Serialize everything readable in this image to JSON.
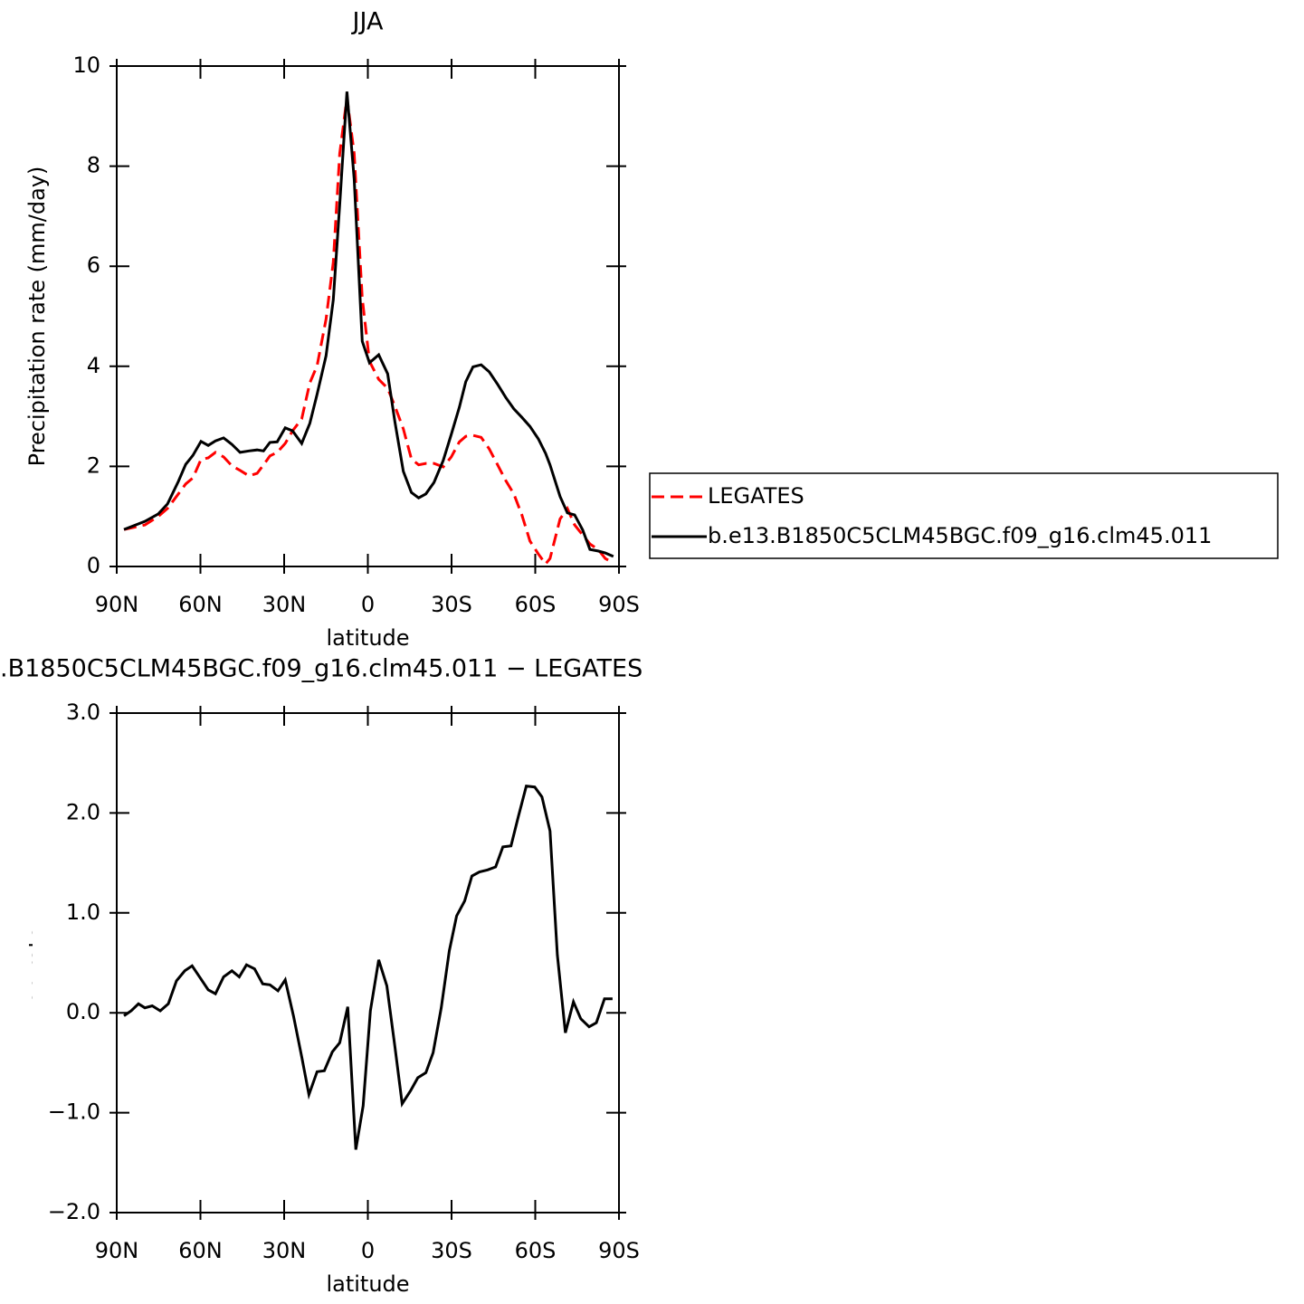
{
  "chart_data": [
    {
      "type": "line",
      "title": "JJA",
      "xlabel": "latitude",
      "ylabel": "Precipitation rate (mm/day)",
      "xlim": [
        90,
        -90
      ],
      "xticks": [
        {
          "value": 90,
          "label": "90N"
        },
        {
          "value": 60,
          "label": "60N"
        },
        {
          "value": 30,
          "label": "30N"
        },
        0,
        {
          "value": -30,
          "label": "30S"
        },
        {
          "value": -60,
          "label": "60S"
        },
        {
          "value": -90,
          "label": "90S"
        }
      ],
      "ylim": [
        0,
        10
      ],
      "yticks": [
        0,
        2,
        4,
        6,
        8,
        10
      ],
      "legend": "right",
      "x": [
        87.4,
        79.9,
        75.1,
        71.8,
        67.9,
        65.3,
        62.7,
        59.8,
        57.2,
        54.6,
        51.7,
        48.7,
        45.8,
        42.6,
        39.7,
        37.4,
        35.1,
        32.5,
        29.6,
        27.0,
        23.7,
        20.8,
        18.2,
        15.0,
        12.4,
        10.1,
        7.5,
        4.9,
        2.0,
        -0.6,
        -3.9,
        -7.1,
        -9.7,
        -12.7,
        -15.6,
        -18.2,
        -20.8,
        -23.7,
        -27.0,
        -29.9,
        -32.8,
        -35.1,
        -37.7,
        -40.6,
        -43.5,
        -46.5,
        -49.4,
        -52.3,
        -55.2,
        -58.1,
        -61.1,
        -63.7,
        -65.3,
        -68.9,
        -71.5,
        -74.1,
        -77.0,
        -79.6,
        -82.5,
        -85.1,
        -88.0
      ],
      "series": [
        {
          "name": "LEGATES",
          "color": "#ff0000",
          "dash": "dashed",
          "values": [
            0.74,
            0.83,
            1.0,
            1.16,
            1.45,
            1.65,
            1.77,
            2.14,
            2.17,
            2.28,
            2.19,
            2.01,
            1.92,
            1.81,
            1.86,
            2.03,
            2.21,
            2.28,
            2.46,
            2.71,
            2.95,
            3.67,
            4.01,
            4.94,
            6.08,
            8.25,
            9.37,
            8.25,
            5.36,
            4.1,
            3.74,
            3.56,
            3.2,
            2.75,
            2.15,
            2.03,
            2.06,
            2.06,
            1.99,
            2.19,
            2.49,
            2.6,
            2.62,
            2.58,
            2.35,
            2.03,
            1.72,
            1.45,
            1.03,
            0.51,
            0.25,
            0.05,
            0.16,
            0.95,
            1.16,
            0.83,
            0.63,
            0.45,
            0.34,
            0.16,
            0.07
          ]
        },
        {
          "name": "b.e13.B1850C5CLM45BGC.f09_g16.clm45.011",
          "color": "#000000",
          "dash": "solid",
          "values": [
            0.74,
            0.9,
            1.05,
            1.25,
            1.7,
            2.04,
            2.22,
            2.5,
            2.42,
            2.51,
            2.57,
            2.44,
            2.28,
            2.31,
            2.33,
            2.31,
            2.48,
            2.49,
            2.77,
            2.71,
            2.46,
            2.86,
            3.44,
            4.21,
            5.33,
            7.23,
            9.49,
            7.74,
            4.5,
            4.07,
            4.23,
            3.85,
            2.89,
            1.9,
            1.48,
            1.37,
            1.45,
            1.68,
            2.12,
            2.64,
            3.18,
            3.69,
            3.99,
            4.03,
            3.89,
            3.64,
            3.38,
            3.15,
            2.98,
            2.8,
            2.55,
            2.26,
            2.03,
            1.4,
            1.07,
            1.03,
            0.73,
            0.34,
            0.31,
            0.27,
            0.2
          ]
        }
      ]
    },
    {
      "type": "line",
      "title": ".B1850C5CLM45BGC.f09_g16.clm45.011 − LEGATES",
      "xlabel": "latitude",
      "ylabel": "Precipitation rate (mm/day)",
      "xlim": [
        90,
        -90
      ],
      "xticks": [
        {
          "value": 90,
          "label": "90N"
        },
        {
          "value": 60,
          "label": "60N"
        },
        {
          "value": 30,
          "label": "30N"
        },
        0,
        {
          "value": -30,
          "label": "30S"
        },
        {
          "value": -60,
          "label": "60S"
        },
        {
          "value": -90,
          "label": "90S"
        }
      ],
      "ylim": [
        -2,
        3
      ],
      "yticks": [
        {
          "value": -2,
          "label": "−2.0"
        },
        {
          "value": -1,
          "label": "−1.0"
        },
        {
          "value": 0,
          "label": "0.0"
        },
        {
          "value": 1,
          "label": "1.0"
        },
        {
          "value": 2,
          "label": "2.0"
        },
        {
          "value": 3,
          "label": "3.0"
        }
      ],
      "x": [
        87.4,
        84.8,
        82.2,
        79.9,
        77.3,
        74.4,
        71.5,
        68.6,
        65.6,
        63.0,
        60.1,
        57.2,
        54.6,
        51.7,
        48.7,
        46.1,
        43.5,
        40.6,
        37.7,
        35.1,
        32.2,
        29.6,
        26.6,
        23.7,
        21.1,
        18.2,
        15.6,
        12.7,
        10.1,
        7.2,
        4.3,
        1.7,
        -0.9,
        -3.9,
        -6.8,
        -9.7,
        -12.3,
        -15.3,
        -17.9,
        -20.8,
        -23.4,
        -26.3,
        -29.2,
        -31.8,
        -34.7,
        -37.3,
        -40.0,
        -42.9,
        -45.8,
        -48.4,
        -51.3,
        -53.9,
        -56.8,
        -59.8,
        -62.4,
        -65.3,
        -67.9,
        -70.8,
        -73.7,
        -76.3,
        -79.3,
        -81.9,
        -84.8,
        -87.7
      ],
      "series": [
        {
          "color": "#000000",
          "dash": "solid",
          "values": [
            -0.03,
            0.02,
            0.09,
            0.05,
            0.07,
            0.02,
            0.09,
            0.32,
            0.42,
            0.47,
            0.35,
            0.23,
            0.19,
            0.36,
            0.42,
            0.36,
            0.48,
            0.44,
            0.29,
            0.28,
            0.22,
            0.33,
            -0.04,
            -0.44,
            -0.82,
            -0.59,
            -0.58,
            -0.39,
            -0.3,
            0.06,
            -1.37,
            -0.93,
            0.02,
            0.53,
            0.27,
            -0.34,
            -0.91,
            -0.78,
            -0.65,
            -0.6,
            -0.4,
            0.05,
            0.62,
            0.97,
            1.12,
            1.37,
            1.41,
            1.43,
            1.46,
            1.66,
            1.67,
            1.96,
            2.27,
            2.26,
            2.16,
            1.82,
            0.58,
            -0.2,
            0.11,
            -0.06,
            -0.14,
            -0.1,
            0.14,
            0.14
          ]
        }
      ]
    }
  ]
}
